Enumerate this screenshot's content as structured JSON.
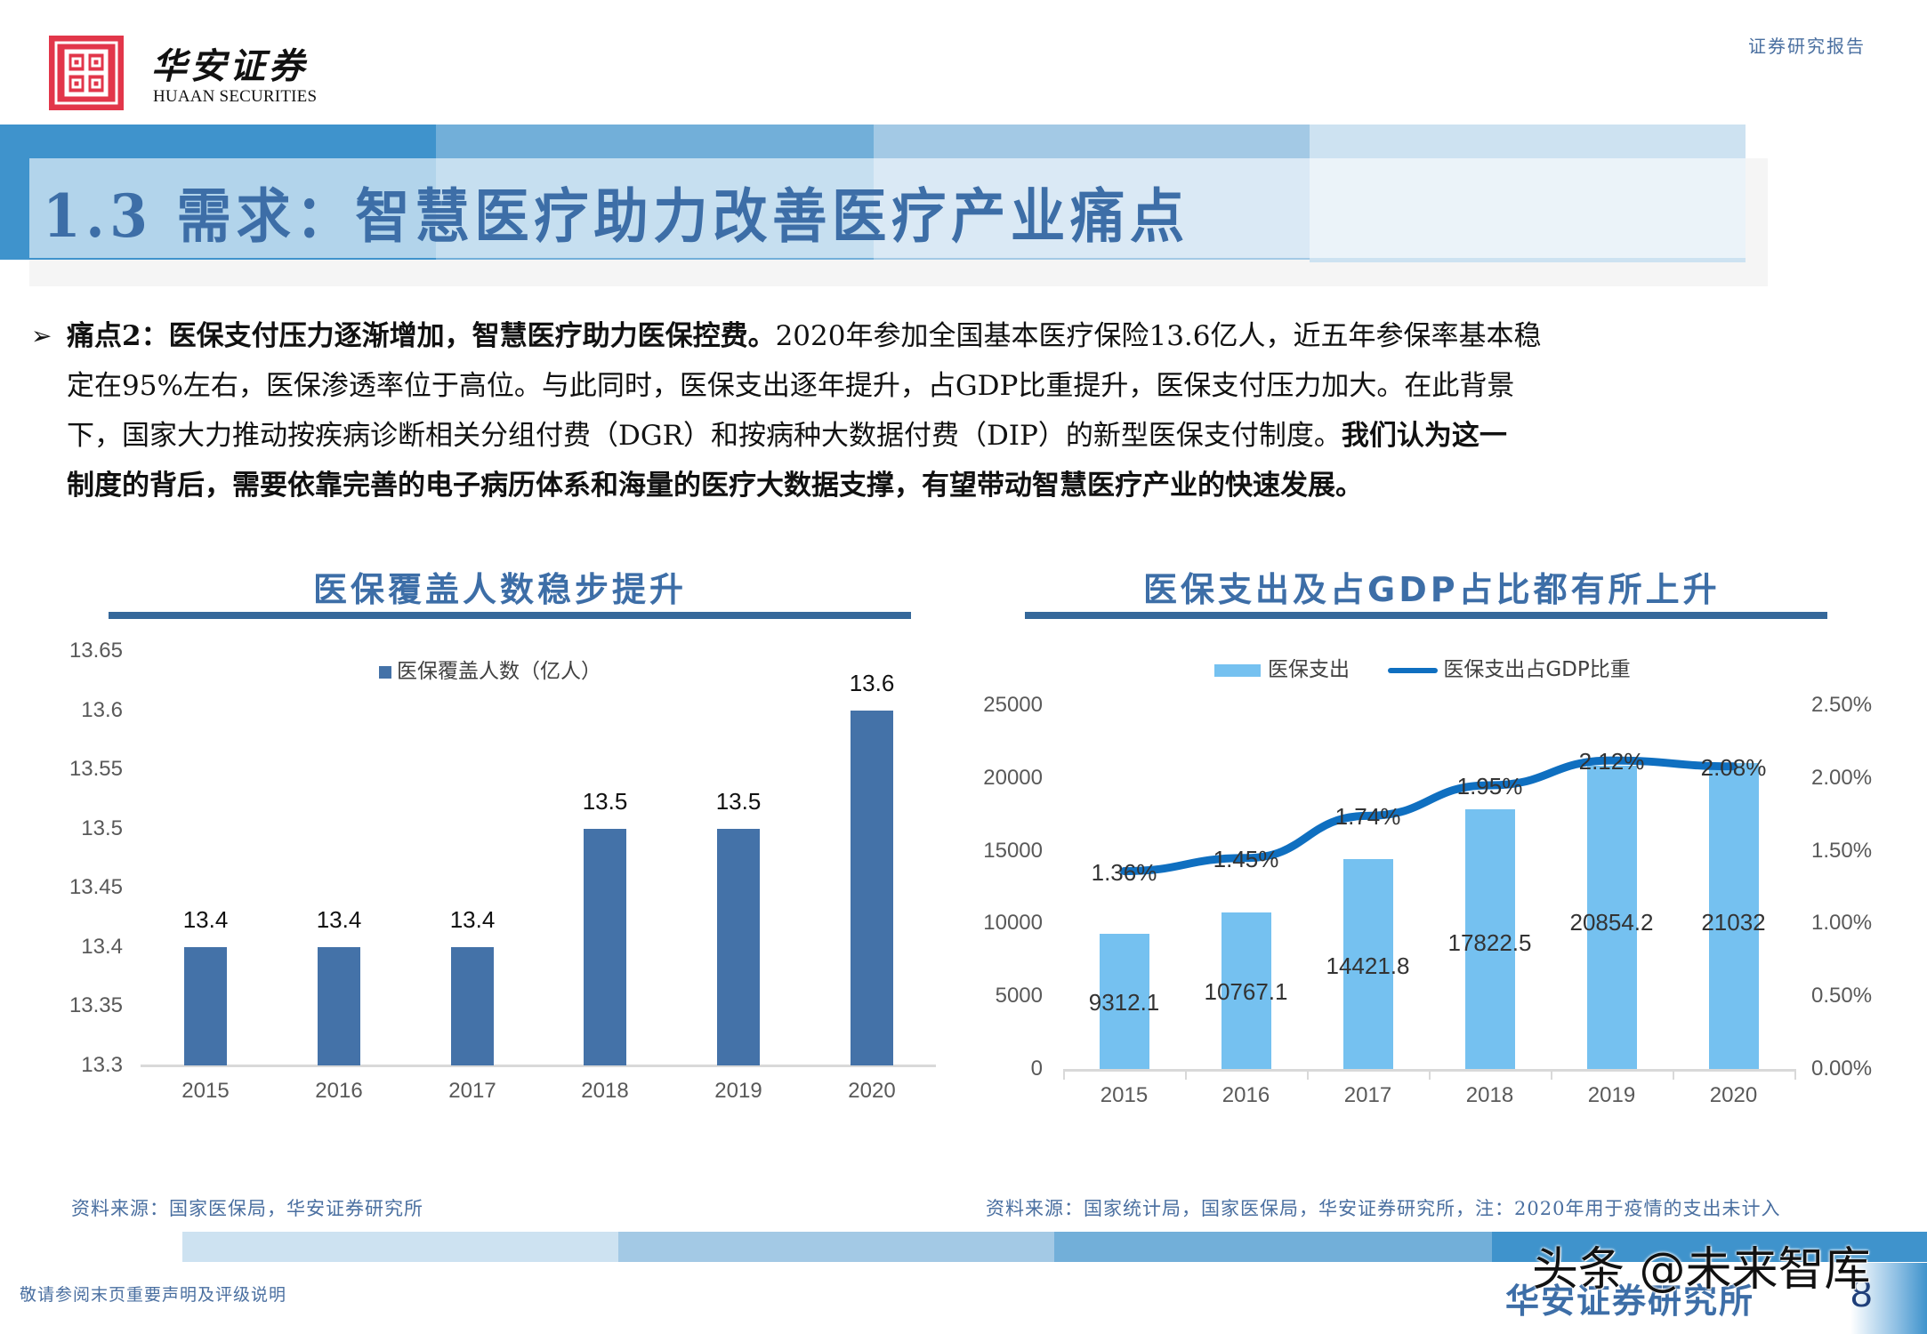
{
  "header": {
    "logo_cn": "华安证券",
    "logo_en": "HUAAN SECURITIES",
    "report_type": "证券研究报告",
    "title": "1.3 需求：智慧医疗助力改善医疗产业痛点",
    "colors": {
      "logo_red": "#e2364a",
      "band1": "#3f93cc",
      "band2": "#72afd9",
      "band3": "#a3c9e5",
      "band4": "#cde2f1",
      "title_blue": "#3d6ea7"
    }
  },
  "body": {
    "bullet_icon": "arrow-right-triangle",
    "line1_bold": "痛点2：医保支付压力逐渐增加，智慧医疗助力医保控费。",
    "line1_rest": "2020年参加全国基本医疗保险13.6亿人，近五年参保率基本稳",
    "line2": "定在95%左右，医保渗透率位于高位。与此同时，医保支出逐年提升，占GDP比重提升，医保支付压力加大。在此背景",
    "line3_regular": "下，国家大力推动按疾病诊断相关分组付费（DGR）和按病种大数据付费（DIP）的新型医保支付制度。",
    "line3_bold": "我们认为这一",
    "line4_bold": "制度的背后，需要依靠完善的电子病历体系和海量的医疗大数据支撑，有望带动智慧医疗产业的快速发展。"
  },
  "chart_data": [
    {
      "type": "bar",
      "title": "医保覆盖人数稳步提升",
      "legend": [
        "医保覆盖人数（亿人）"
      ],
      "categories": [
        "2015",
        "2016",
        "2017",
        "2018",
        "2019",
        "2020"
      ],
      "values": [
        13.4,
        13.4,
        13.4,
        13.5,
        13.5,
        13.6
      ],
      "data_labels": [
        "13.4",
        "13.4",
        "13.4",
        "13.5",
        "13.5",
        "13.6"
      ],
      "yticks": [
        "13.65",
        "13.6",
        "13.55",
        "13.5",
        "13.45",
        "13.4",
        "13.35",
        "13.3"
      ],
      "ylim": [
        13.3,
        13.65
      ],
      "xlabel": "",
      "ylabel": "",
      "grid": false,
      "legend_position": "top",
      "bar_color": "#4472a8",
      "source": "资料来源：国家医保局，华安证券研究所"
    },
    {
      "type": "bar+line",
      "title": "医保支出及占GDP占比都有所上升",
      "legend": [
        "医保支出",
        "医保支出占GDP比重"
      ],
      "categories": [
        "2015",
        "2016",
        "2017",
        "2018",
        "2019",
        "2020"
      ],
      "series": [
        {
          "name": "医保支出",
          "type": "bar",
          "axis": "left",
          "values": [
            9312.1,
            10767.1,
            14421.8,
            17822.5,
            20854.2,
            21032
          ],
          "data_labels": [
            "9312.1",
            "10767.1",
            "14421.8",
            "17822.5",
            "20854.2",
            "21032"
          ],
          "color": "#75c1f0"
        },
        {
          "name": "医保支出占GDP比重",
          "type": "line",
          "axis": "right",
          "values": [
            1.36,
            1.45,
            1.74,
            1.95,
            2.12,
            2.08
          ],
          "data_labels": [
            "1.36%",
            "1.45%",
            "1.74%",
            "1.95%",
            "2.12%",
            "2.08%"
          ],
          "color": "#0f6fc0"
        }
      ],
      "yticks_left": [
        "25000",
        "20000",
        "15000",
        "10000",
        "5000",
        "0"
      ],
      "yticks_right": [
        "2.50%",
        "2.00%",
        "1.50%",
        "1.00%",
        "0.50%",
        "0.00%"
      ],
      "ylim_left": [
        0,
        25000
      ],
      "ylim_right": [
        0,
        2.5
      ],
      "grid": false,
      "legend_position": "top",
      "source": "资料来源：国家统计局，国家医保局，华安证券研究所，注：2020年用于疫情的支出未计入"
    }
  ],
  "footer": {
    "disclaimer": "敬请参阅末页重要声明及评级说明",
    "brand": "华安证券研究所",
    "watermark": "头条 @未来智库",
    "page_number": "8"
  }
}
